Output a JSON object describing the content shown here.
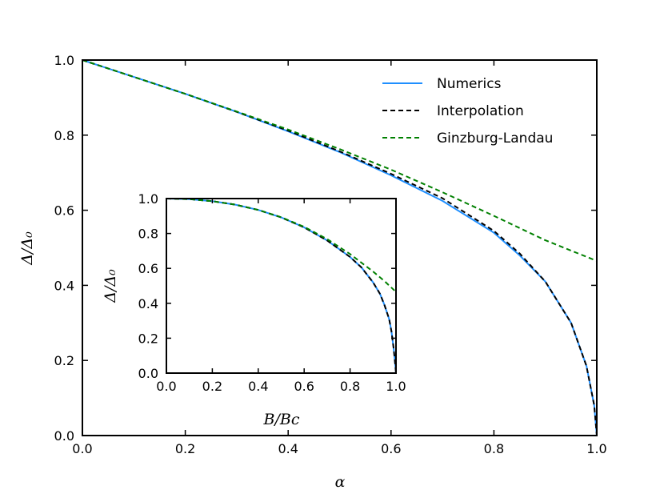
{
  "chart_data": [
    {
      "type": "line",
      "title": "",
      "xlabel": "α",
      "ylabel": "Δ/Δ₀",
      "xlim": [
        0.0,
        1.0
      ],
      "ylim": [
        0.0,
        1.0
      ],
      "xticks": [
        "0.0",
        "0.2",
        "0.4",
        "0.6",
        "0.8",
        "1.0"
      ],
      "yticks": [
        "0.0",
        "0.2",
        "0.4",
        "0.6",
        "0.8",
        "1.0"
      ],
      "legend_position": "top-right",
      "series": [
        {
          "name": "Numerics",
          "color": "#1f8fff",
          "style": "solid",
          "x": [
            0.0,
            0.1,
            0.2,
            0.3,
            0.4,
            0.5,
            0.6,
            0.7,
            0.8,
            0.85,
            0.9,
            0.95,
            0.98,
            0.995,
            1.0
          ],
          "y": [
            1.0,
            0.955,
            0.91,
            0.862,
            0.81,
            0.755,
            0.693,
            0.625,
            0.54,
            0.48,
            0.41,
            0.3,
            0.185,
            0.08,
            0.0
          ]
        },
        {
          "name": "Interpolation",
          "color": "#000000",
          "style": "dashed",
          "x": [
            0.0,
            0.1,
            0.2,
            0.3,
            0.4,
            0.5,
            0.6,
            0.7,
            0.8,
            0.85,
            0.9,
            0.95,
            0.98,
            0.995,
            1.0
          ],
          "y": [
            1.0,
            0.955,
            0.91,
            0.862,
            0.812,
            0.757,
            0.697,
            0.632,
            0.545,
            0.485,
            0.41,
            0.3,
            0.185,
            0.08,
            0.0
          ]
        },
        {
          "name": "Ginzburg-Landau",
          "color": "#008000",
          "style": "dashed",
          "x": [
            0.0,
            0.1,
            0.2,
            0.3,
            0.4,
            0.5,
            0.6,
            0.7,
            0.8,
            0.9,
            1.0
          ],
          "y": [
            1.0,
            0.955,
            0.91,
            0.863,
            0.815,
            0.763,
            0.708,
            0.648,
            0.585,
            0.52,
            0.465
          ]
        }
      ]
    },
    {
      "type": "line",
      "title": "",
      "xlabel": "B/Bc",
      "ylabel": "Δ/Δ₀",
      "xlim": [
        0.0,
        1.0
      ],
      "ylim": [
        0.0,
        1.0
      ],
      "xticks": [
        "0.0",
        "0.2",
        "0.4",
        "0.6",
        "0.8",
        "1.0"
      ],
      "yticks": [
        "0.0",
        "0.2",
        "0.4",
        "0.6",
        "0.8",
        "1.0"
      ],
      "series": [
        {
          "color": "#1f8fff",
          "style": "solid",
          "x": [
            0.0,
            0.1,
            0.2,
            0.3,
            0.4,
            0.5,
            0.6,
            0.7,
            0.8,
            0.85,
            0.9,
            0.93,
            0.95,
            0.97,
            0.98,
            0.99,
            0.995,
            1.0
          ],
          "y": [
            1.0,
            0.997,
            0.985,
            0.965,
            0.935,
            0.892,
            0.835,
            0.76,
            0.665,
            0.605,
            0.52,
            0.455,
            0.39,
            0.31,
            0.24,
            0.14,
            0.07,
            0.0
          ]
        },
        {
          "color": "#000000",
          "style": "dashed",
          "x": [
            0.0,
            0.1,
            0.2,
            0.3,
            0.4,
            0.5,
            0.6,
            0.7,
            0.8,
            0.85,
            0.9,
            0.93,
            0.95,
            0.97,
            0.98,
            0.99,
            0.995,
            1.0
          ],
          "y": [
            1.0,
            0.997,
            0.985,
            0.965,
            0.935,
            0.892,
            0.835,
            0.76,
            0.665,
            0.605,
            0.52,
            0.455,
            0.39,
            0.31,
            0.24,
            0.14,
            0.07,
            0.0
          ]
        },
        {
          "color": "#008000",
          "style": "dashed",
          "x": [
            0.0,
            0.1,
            0.2,
            0.3,
            0.4,
            0.5,
            0.6,
            0.7,
            0.8,
            0.85,
            0.9,
            0.95,
            1.0
          ],
          "y": [
            1.0,
            0.997,
            0.985,
            0.965,
            0.935,
            0.893,
            0.838,
            0.768,
            0.682,
            0.632,
            0.582,
            0.527,
            0.465
          ]
        }
      ]
    }
  ]
}
